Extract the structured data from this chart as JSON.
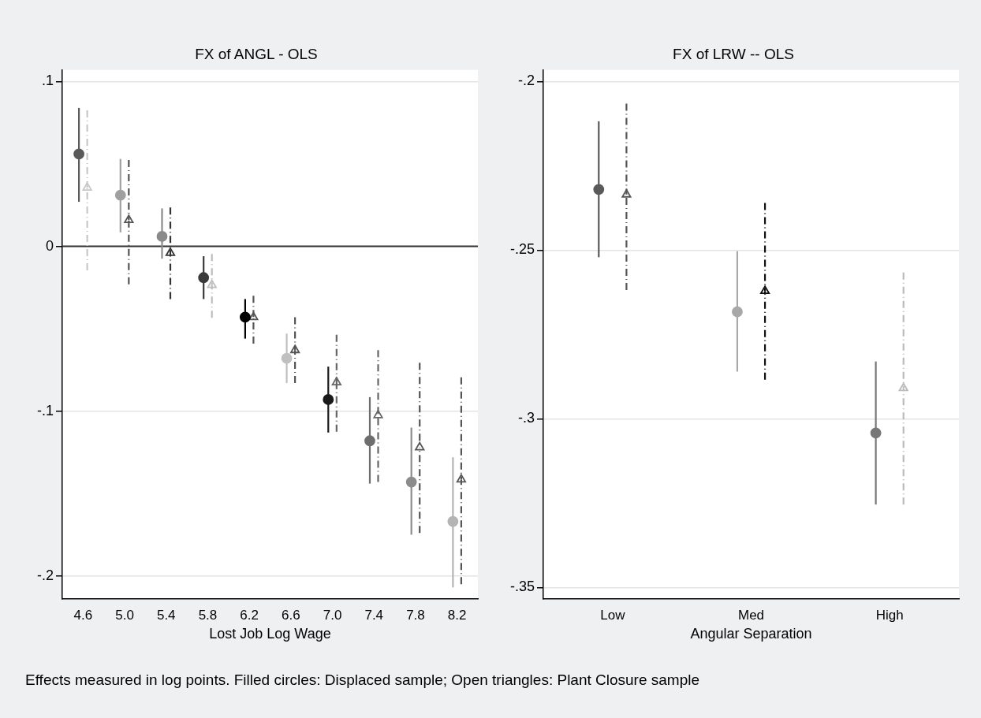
{
  "chart_data": [
    {
      "type": "scatter",
      "title": "FX of ANGL - OLS",
      "xlabel": "Lost Job Log Wage",
      "categories": [
        "4.6",
        "5.0",
        "5.4",
        "5.8",
        "6.2",
        "6.6",
        "7.0",
        "7.4",
        "7.8",
        "8.2"
      ],
      "ylim": [
        -0.214,
        0.107
      ],
      "yticks": [
        {
          "value": -0.2,
          "label": "-.2"
        },
        {
          "value": -0.1,
          "label": "-.1"
        },
        {
          "value": 0,
          "label": "0"
        },
        {
          "value": 0.1,
          "label": ".1"
        }
      ],
      "grid": "y",
      "legend": false,
      "ref_lines": [
        {
          "axis": "y",
          "value": 0,
          "color": "#333333"
        }
      ],
      "annotations": [
        "Effects measured in log points. Filled circles: Displaced sample; Open triangles: Plant Closure sample"
      ],
      "series": [
        {
          "marker": "circle",
          "line_style": "solid",
          "colors": [
            "#5a5a5a",
            "#a0a0a0",
            "#8a8a8a",
            "#3a3a3a",
            "#000000",
            "#c0c0c0",
            "#1a1a1a",
            "#6e6e6e",
            "#8c8c8c",
            "#b4b4b4"
          ],
          "values": [
            0.056,
            0.031,
            0.006,
            -0.019,
            -0.043,
            -0.068,
            -0.093,
            -0.118,
            -0.143,
            -0.167
          ],
          "errors": [
            [
              0.027,
              0.084
            ],
            [
              0.0085,
              0.053
            ],
            [
              -0.0075,
              0.023
            ],
            [
              -0.032,
              -0.006
            ],
            [
              -0.056,
              -0.032
            ],
            [
              -0.083,
              -0.053
            ],
            [
              -0.113,
              -0.073
            ],
            [
              -0.144,
              -0.0915
            ],
            [
              -0.175,
              -0.11
            ],
            [
              -0.207,
              -0.128
            ]
          ]
        },
        {
          "marker": "triangle",
          "line_style": "dashed",
          "colors": [
            "#c8c8c8",
            "#555555",
            "#333333",
            "#bdbdbd",
            "#555555",
            "#555555",
            "#666666",
            "#666666",
            "#555555",
            "#555555"
          ],
          "values": [
            0.0356,
            0.016,
            -0.004,
            -0.0235,
            -0.043,
            -0.063,
            -0.0825,
            -0.1025,
            -0.122,
            -0.1415
          ],
          "errors": [
            [
              -0.0146,
              0.0825
            ],
            [
              -0.023,
              0.0524
            ],
            [
              -0.032,
              0.0236
            ],
            [
              -0.0434,
              -0.0047
            ],
            [
              -0.059,
              -0.03
            ],
            [
              -0.083,
              -0.043
            ],
            [
              -0.1125,
              -0.0537
            ],
            [
              -0.143,
              -0.063
            ],
            [
              -0.174,
              -0.0707
            ],
            [
              -0.205,
              -0.0795
            ]
          ]
        }
      ]
    },
    {
      "type": "scatter",
      "title": "FX of LRW -- OLS",
      "xlabel": "Angular Separation",
      "categories": [
        "Low",
        "Med",
        "High"
      ],
      "ylim": [
        -0.3534,
        -0.1966
      ],
      "yticks": [
        {
          "value": -0.35,
          "label": "-.35"
        },
        {
          "value": -0.3,
          "label": "-.3"
        },
        {
          "value": -0.25,
          "label": "-.25"
        },
        {
          "value": -0.2,
          "label": "-.2"
        }
      ],
      "grid": "y",
      "legend": false,
      "series": [
        {
          "marker": "circle",
          "line_style": "solid",
          "colors": [
            "#5a5a5a",
            "#a8a8a8",
            "#777777"
          ],
          "values": [
            -0.232,
            -0.2683,
            -0.3042
          ],
          "errors": [
            [
              -0.2521,
              -0.2118
            ],
            [
              -0.286,
              -0.2503
            ],
            [
              -0.3254,
              -0.283
            ]
          ]
        },
        {
          "marker": "triangle",
          "line_style": "dashed",
          "colors": [
            "#555555",
            "#111111",
            "#bbbbbb"
          ],
          "values": [
            -0.2335,
            -0.2621,
            -0.2909
          ],
          "errors": [
            [
              -0.2618,
              -0.2066
            ],
            [
              -0.2884,
              -0.236
            ],
            [
              -0.3254,
              -0.2566
            ]
          ]
        }
      ]
    }
  ]
}
